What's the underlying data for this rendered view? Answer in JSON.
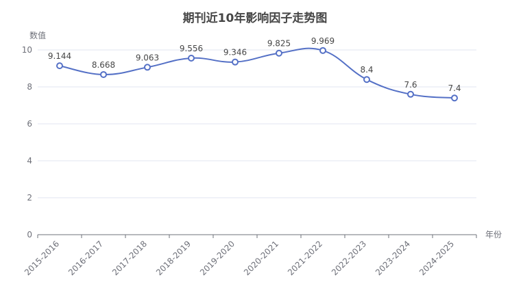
{
  "chart_data": {
    "type": "line",
    "title": "期刊近10年影响因子走势图",
    "xlabel": "年份",
    "ylabel": "数值",
    "categories": [
      "2015-2016",
      "2016-2017",
      "2017-2018",
      "2018-2019",
      "2019-2020",
      "2020-2021",
      "2021-2022",
      "2022-2023",
      "2023-2024",
      "2024-2025"
    ],
    "series": [
      {
        "values": [
          9.144,
          8.668,
          9.063,
          9.556,
          9.346,
          9.825,
          9.969,
          8.4,
          7.6,
          7.4
        ]
      }
    ],
    "value_labels": [
      "9.144",
      "8.668",
      "9.063",
      "9.556",
      "9.346",
      "9.825",
      "9.969",
      "8.4",
      "7.6",
      "7.4"
    ],
    "ylim": [
      0,
      10
    ],
    "yticks": [
      0,
      2,
      4,
      6,
      8,
      10
    ],
    "grid": true,
    "smooth": true,
    "colors": {
      "line": "#5470c6",
      "marker_fill": "#ffffff",
      "grid": "#e0e6f1",
      "axis": "#6e7079"
    }
  }
}
